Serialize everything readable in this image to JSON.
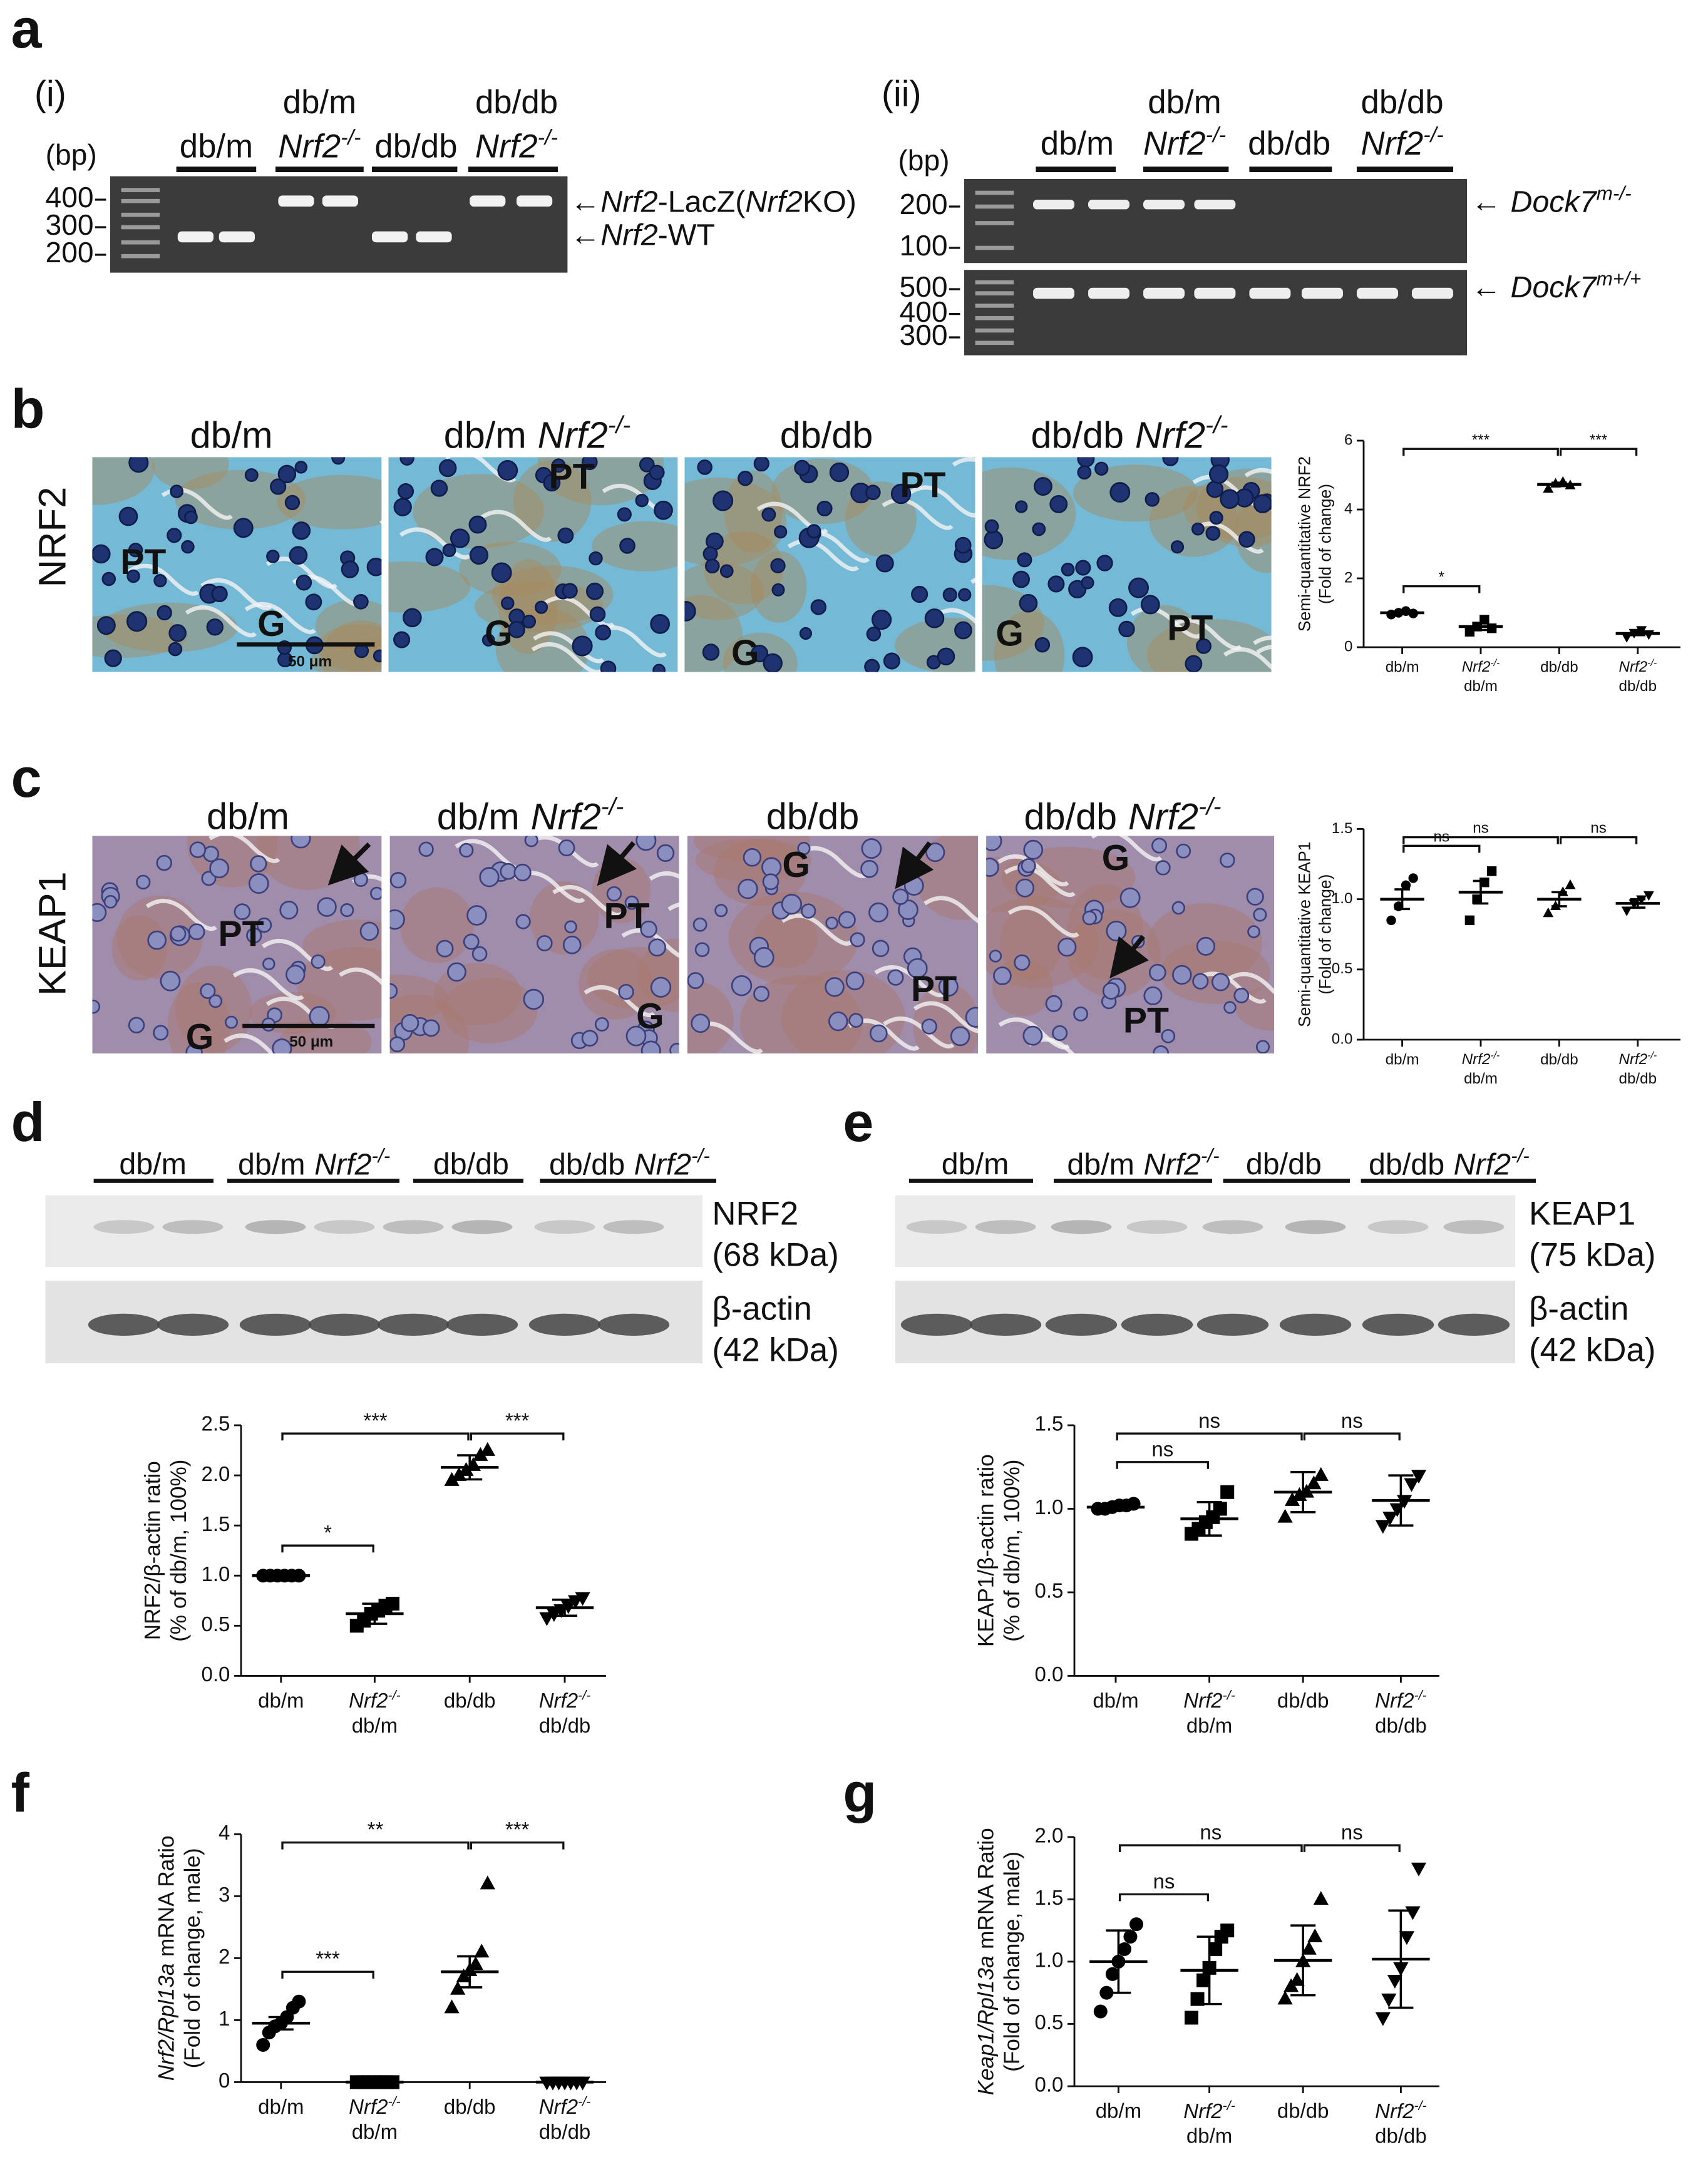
{
  "figure": {
    "a": {
      "label": "a",
      "gel_i": {
        "title": "(i)",
        "unit": "(bp)",
        "ladder": [
          "400",
          "300",
          "200"
        ],
        "groups": [
          [
            "db/m"
          ],
          [
            "db/m",
            "Nrf2",
            "-/-"
          ],
          [
            "db/db"
          ],
          [
            "db/db",
            "Nrf2",
            "-/-"
          ]
        ],
        "arrows": [
          [
            "←",
            "Nrf2",
            "-LacZ(",
            "Nrf2",
            "KO)"
          ],
          [
            "←",
            "Nrf2",
            "-WT"
          ]
        ]
      },
      "gel_ii": {
        "title": "(ii)",
        "unit": "(bp)",
        "ladder_top": [
          "200",
          "100"
        ],
        "ladder_bottom": [
          "500",
          "400",
          "300"
        ],
        "groups": [
          [
            "db/m"
          ],
          [
            "db/m",
            "Nrf2",
            "-/-"
          ],
          [
            "db/db"
          ],
          [
            "db/db",
            "Nrf2",
            "-/-"
          ]
        ],
        "arrows": [
          [
            "←",
            "Dock7",
            "m",
            "-/-"
          ],
          [
            "←",
            "Dock7",
            "m",
            "+/+"
          ]
        ]
      }
    },
    "b": {
      "label": "b",
      "row": "NRF2",
      "titles": [
        [
          "db/m"
        ],
        [
          "db/m",
          "Nrf2",
          "-/-"
        ],
        [
          "db/db"
        ],
        [
          "db/db",
          "Nrf2",
          "-/-"
        ]
      ],
      "image_labels": [
        [
          "PT",
          "G"
        ],
        [
          "PT",
          "G"
        ],
        [
          "PT",
          "G"
        ],
        [
          "G",
          "PT"
        ]
      ],
      "scale": "50 μm"
    },
    "c": {
      "label": "c",
      "row": "KEAP1",
      "titles": [
        [
          "db/m"
        ],
        [
          "db/m",
          "Nrf2",
          "-/-"
        ],
        [
          "db/db"
        ],
        [
          "db/db",
          "Nrf2",
          "-/-"
        ]
      ],
      "image_labels": [
        [
          "PT",
          "G"
        ],
        [
          "PT",
          "G"
        ],
        [
          "G",
          "PT"
        ],
        [
          "G",
          "PT"
        ]
      ],
      "scale": "50 μm"
    },
    "d": {
      "label": "d",
      "groups": [
        [
          "db/m"
        ],
        [
          "db/m",
          "Nrf2",
          "-/-"
        ],
        [
          "db/db"
        ],
        [
          "db/db",
          "Nrf2",
          "-/-"
        ]
      ],
      "blots": [
        [
          "NRF2",
          "(68 kDa)"
        ],
        [
          "β-actin",
          "(42 kDa)"
        ]
      ]
    },
    "e": {
      "label": "e",
      "groups": [
        [
          "db/m"
        ],
        [
          "db/m",
          "Nrf2",
          "-/-"
        ],
        [
          "db/db"
        ],
        [
          "db/db",
          "Nrf2",
          "-/-"
        ]
      ],
      "blots": [
        [
          "KEAP1",
          "(75 kDa)"
        ],
        [
          "β-actin",
          "(42 kDa)"
        ]
      ]
    },
    "f": {
      "label": "f"
    },
    "g": {
      "label": "g"
    }
  },
  "chart_data": [
    {
      "type": "dot",
      "color": "#000000",
      "ylabel": [
        [
          "Semi-quantitative NRF2"
        ],
        [
          "(Fold of change)"
        ]
      ],
      "categories": [
        [
          "db/m"
        ],
        [
          "db/m",
          "Nrf2",
          "-/-"
        ],
        [
          "db/db"
        ],
        [
          "db/db",
          "Nrf2",
          "-/-"
        ]
      ],
      "points": [
        [
          0.95,
          1.0,
          1.05,
          0.98
        ],
        [
          0.45,
          0.6,
          0.8,
          0.55
        ],
        [
          4.6,
          4.75,
          4.8,
          4.7
        ],
        [
          0.3,
          0.42,
          0.5,
          0.38
        ]
      ],
      "means": [
        1.0,
        0.6,
        4.73,
        0.4
      ],
      "errors": [
        0.03,
        0.1,
        0.05,
        0.05
      ],
      "ylim": [
        0,
        6
      ],
      "yticks": [
        0,
        2,
        4,
        6
      ],
      "brackets": [
        {
          "groups": [
            0,
            1
          ],
          "label": "*"
        },
        {
          "groups": [
            0,
            2
          ],
          "label": "***"
        },
        {
          "groups": [
            2,
            3
          ],
          "label": "***"
        }
      ]
    },
    {
      "type": "dot",
      "color": "#000000",
      "ylabel": [
        [
          "Semi-quantitative KEAP1"
        ],
        [
          "(Fold of change)"
        ]
      ],
      "categories": [
        [
          "db/m"
        ],
        [
          "db/m",
          "Nrf2",
          "-/-"
        ],
        [
          "db/db"
        ],
        [
          "db/db",
          "Nrf2",
          "-/-"
        ]
      ],
      "points": [
        [
          0.85,
          0.95,
          1.1,
          1.15
        ],
        [
          0.85,
          1.0,
          1.12,
          1.2
        ],
        [
          0.9,
          0.95,
          1.05,
          1.1
        ],
        [
          0.92,
          0.97,
          1.0,
          1.03
        ]
      ],
      "means": [
        1.0,
        1.05,
        1.0,
        0.97
      ],
      "errors": [
        0.07,
        0.08,
        0.05,
        0.03
      ],
      "ylim": [
        0,
        1.5
      ],
      "yticks": [
        {
          "value": 0,
          "label": "0.0"
        },
        {
          "value": 0.5,
          "label": "0.5"
        },
        {
          "value": 1,
          "label": "1.0"
        },
        {
          "value": 1.5,
          "label": "1.5"
        }
      ],
      "brackets": [
        {
          "groups": [
            0,
            1
          ],
          "label": "ns"
        },
        {
          "groups": [
            0,
            2
          ],
          "label": "ns"
        },
        {
          "groups": [
            2,
            3
          ],
          "label": "ns"
        }
      ]
    },
    {
      "type": "dot",
      "color": "#000000",
      "ylabel": [
        [
          "NRF2/β-actin ratio"
        ],
        [
          "(% of db/m, 100%)"
        ]
      ],
      "categories": [
        [
          "db/m"
        ],
        [
          "db/m",
          "Nrf2",
          "-/-"
        ],
        [
          "db/db"
        ],
        [
          "db/db",
          "Nrf2",
          "-/-"
        ]
      ],
      "points": [
        [
          1,
          1,
          1,
          1,
          1,
          1
        ],
        [
          0.5,
          0.55,
          0.62,
          0.65,
          0.7,
          0.72
        ],
        [
          1.95,
          2.0,
          2.05,
          2.1,
          2.2,
          2.25
        ],
        [
          0.58,
          0.62,
          0.66,
          0.7,
          0.75,
          0.78
        ]
      ],
      "means": [
        1.0,
        0.62,
        2.08,
        0.68
      ],
      "errors": [
        0,
        0.1,
        0.12,
        0.08
      ],
      "ylim": [
        0,
        2.5
      ],
      "yticks": [
        {
          "value": 0,
          "label": "0.0"
        },
        {
          "value": 0.5,
          "label": "0.5"
        },
        {
          "value": 1,
          "label": "1.0"
        },
        {
          "value": 1.5,
          "label": "1.5"
        },
        {
          "value": 2,
          "label": "2.0"
        },
        {
          "value": 2.5,
          "label": "2.5"
        }
      ],
      "brackets": [
        {
          "groups": [
            0,
            1
          ],
          "label": "*"
        },
        {
          "groups": [
            0,
            2
          ],
          "label": "***"
        },
        {
          "groups": [
            2,
            3
          ],
          "label": "***"
        }
      ]
    },
    {
      "type": "dot",
      "color": "#000000",
      "ylabel": [
        [
          "KEAP1/β-actin ratio"
        ],
        [
          "(% of db/m, 100%)"
        ]
      ],
      "categories": [
        [
          "db/m"
        ],
        [
          "db/m",
          "Nrf2",
          "-/-"
        ],
        [
          "db/db"
        ],
        [
          "db/db",
          "Nrf2",
          "-/-"
        ]
      ],
      "points": [
        [
          1.0,
          1.0,
          1.01,
          1.02,
          1.02,
          1.03
        ],
        [
          0.85,
          0.88,
          0.92,
          0.95,
          1.0,
          1.1
        ],
        [
          0.95,
          1.05,
          1.08,
          1.1,
          1.15,
          1.2
        ],
        [
          0.9,
          0.95,
          1.0,
          1.05,
          1.15,
          1.2
        ]
      ],
      "means": [
        1.01,
        0.94,
        1.1,
        1.05
      ],
      "errors": [
        0.02,
        0.1,
        0.12,
        0.15
      ],
      "ylim": [
        0,
        1.5
      ],
      "yticks": [
        {
          "value": 0,
          "label": "0.0"
        },
        {
          "value": 0.5,
          "label": "0.5"
        },
        {
          "value": 1,
          "label": "1.0"
        },
        {
          "value": 1.5,
          "label": "1.5"
        }
      ],
      "brackets": [
        {
          "groups": [
            0,
            1
          ],
          "label": "ns"
        },
        {
          "groups": [
            0,
            2
          ],
          "label": "ns"
        },
        {
          "groups": [
            2,
            3
          ],
          "label": "ns"
        }
      ]
    },
    {
      "type": "dot",
      "color": "#000000",
      "ylabel": [
        [
          "Nrf2/Rpl13a",
          "mRNA Ratio"
        ],
        [
          "(Fold of change, male)"
        ]
      ],
      "categories": [
        [
          "db/m"
        ],
        [
          "db/m",
          "Nrf2",
          "-/-"
        ],
        [
          "db/db"
        ],
        [
          "db/db",
          "Nrf2",
          "-/-"
        ]
      ],
      "points": [
        [
          0.6,
          0.8,
          0.9,
          0.95,
          1.05,
          1.2,
          1.3
        ],
        [
          0,
          0,
          0,
          0,
          0,
          0,
          0
        ],
        [
          1.2,
          1.5,
          1.7,
          1.8,
          1.9,
          2.1,
          3.2
        ],
        [
          0,
          0,
          0,
          0,
          0,
          0,
          0
        ]
      ],
      "means": [
        0.95,
        0,
        1.78,
        0
      ],
      "errors": [
        0.1,
        0,
        0.25,
        0
      ],
      "ylim": [
        0,
        4
      ],
      "yticks": [
        0,
        1,
        2,
        3,
        4
      ],
      "brackets": [
        {
          "groups": [
            0,
            1
          ],
          "label": "***"
        },
        {
          "groups": [
            0,
            2
          ],
          "label": "**"
        },
        {
          "groups": [
            2,
            3
          ],
          "label": "***"
        }
      ]
    },
    {
      "type": "dot",
      "color": "#000000",
      "ylabel": [
        [
          "Keap1/Rpl13a",
          "mRNA Ratio"
        ],
        [
          "(Fold of change, male)"
        ]
      ],
      "categories": [
        [
          "db/m"
        ],
        [
          "db/m",
          "Nrf2",
          "-/-"
        ],
        [
          "db/db"
        ],
        [
          "db/db",
          "Nrf2",
          "-/-"
        ]
      ],
      "points": [
        [
          0.6,
          0.75,
          0.9,
          1.0,
          1.1,
          1.2,
          1.3
        ],
        [
          0.55,
          0.7,
          0.85,
          0.95,
          1.1,
          1.2,
          1.25
        ],
        [
          0.7,
          0.8,
          0.85,
          1.0,
          1.1,
          1.2,
          1.5
        ],
        [
          0.55,
          0.7,
          0.85,
          0.95,
          1.2,
          1.4,
          1.75
        ]
      ],
      "means": [
        1.0,
        0.93,
        1.01,
        1.02
      ],
      "errors": [
        0.25,
        0.27,
        0.28,
        0.39
      ],
      "ylim": [
        0,
        2
      ],
      "yticks": [
        {
          "value": 0,
          "label": "0.0"
        },
        {
          "value": 0.5,
          "label": "0.5"
        },
        {
          "value": 1,
          "label": "1.0"
        },
        {
          "value": 1.5,
          "label": "1.5"
        },
        {
          "value": 2,
          "label": "2.0"
        }
      ],
      "brackets": [
        {
          "groups": [
            0,
            1
          ],
          "label": "ns"
        },
        {
          "groups": [
            0,
            2
          ],
          "label": "ns"
        },
        {
          "groups": [
            2,
            3
          ],
          "label": "ns"
        }
      ]
    }
  ]
}
